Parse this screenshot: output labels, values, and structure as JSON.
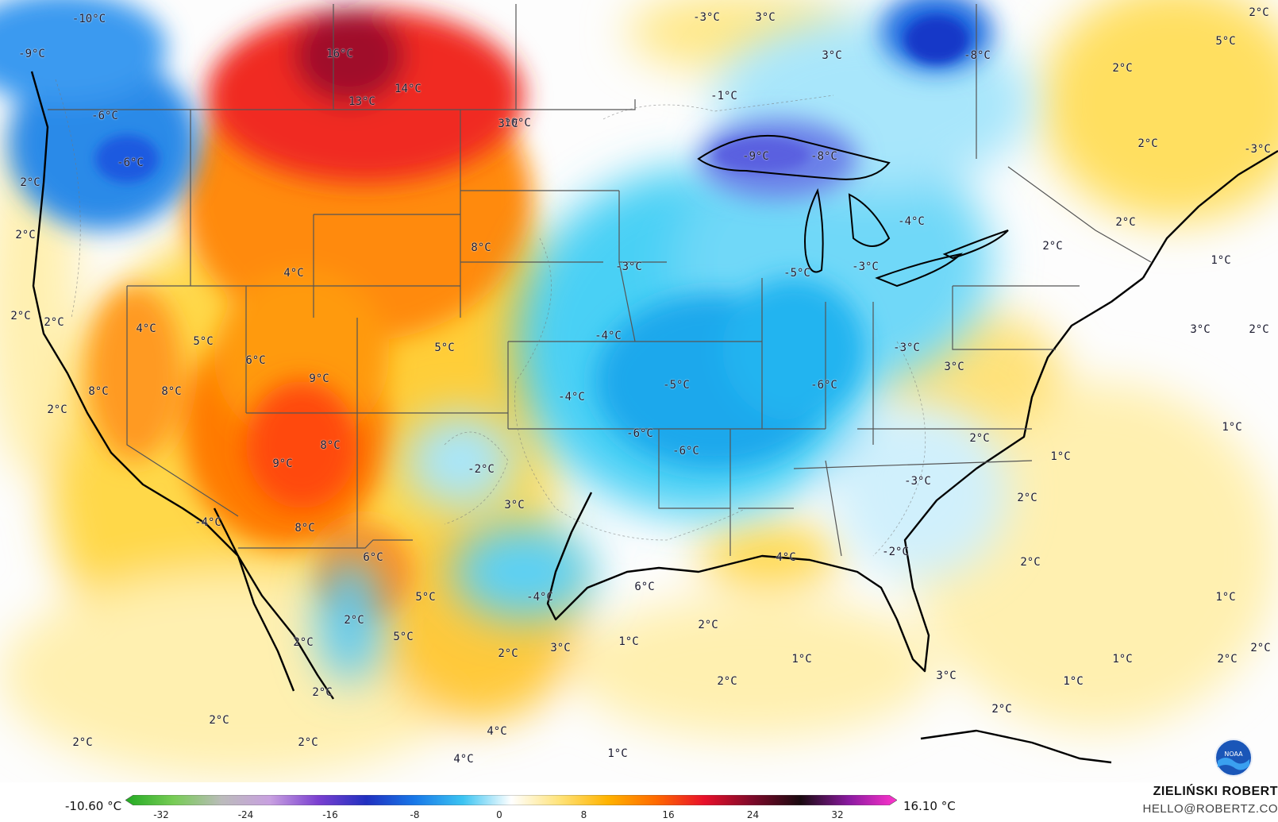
{
  "logo": {
    "text": "NOAA"
  },
  "legend": {
    "min_label": "-10.60 °C",
    "max_label": "16.10 °C",
    "ticks": [
      "-32",
      "-24",
      "-16",
      "-8",
      "0",
      "8",
      "16",
      "24",
      "32"
    ],
    "colors": [
      "#22aa22",
      "#77cc55",
      "#bbbbbb",
      "#c8a0e0",
      "#7a3fd0",
      "#2030c0",
      "#1878e8",
      "#3cc4f2",
      "#ffffff",
      "#ffe37a",
      "#ffb300",
      "#ff6a00",
      "#e8102a",
      "#7d0a2a",
      "#1a0a10",
      "#8a1aa0",
      "#ff33cc"
    ]
  },
  "credit": {
    "name": "ZIELIŃSKI ROBERT",
    "email": "HELLO@ROBERTZ.CO"
  },
  "temperature_labels": [
    {
      "text": "-10°C"
    },
    {
      "text": "-9°C"
    },
    {
      "text": "16°C"
    },
    {
      "text": "14°C"
    },
    {
      "text": "13°C"
    },
    {
      "text": "10°C"
    },
    {
      "text": "-6°C"
    },
    {
      "text": "-6°C"
    },
    {
      "text": "2°C"
    },
    {
      "text": "2°C"
    },
    {
      "text": "2°C"
    },
    {
      "text": "2°C"
    },
    {
      "text": "8°C"
    },
    {
      "text": "4°C"
    },
    {
      "text": "4°C"
    },
    {
      "text": "5°C"
    },
    {
      "text": "6°C"
    },
    {
      "text": "9°C"
    },
    {
      "text": "5°C"
    },
    {
      "text": "8°C"
    },
    {
      "text": "8°C"
    },
    {
      "text": "2°C"
    },
    {
      "text": "9°C"
    },
    {
      "text": "8°C"
    },
    {
      "text": "8°C"
    },
    {
      "text": "-4°C"
    },
    {
      "text": "6°C"
    },
    {
      "text": "-2°C"
    },
    {
      "text": "3°C"
    },
    {
      "text": "-3°C"
    },
    {
      "text": "3°C"
    },
    {
      "text": "3°C"
    },
    {
      "text": "-1°C"
    },
    {
      "text": "3°C"
    },
    {
      "text": "-8°C"
    },
    {
      "text": "5°C"
    },
    {
      "text": "2°C"
    },
    {
      "text": "-9°C"
    },
    {
      "text": "-8°C"
    },
    {
      "text": "-3°C"
    },
    {
      "text": "-4°C"
    },
    {
      "text": "-5°C"
    },
    {
      "text": "-3°C"
    },
    {
      "text": "2°C"
    },
    {
      "text": "2°C"
    },
    {
      "text": "1°C"
    },
    {
      "text": "2°C"
    },
    {
      "text": "-3°C"
    },
    {
      "text": "-4°C"
    },
    {
      "text": "-5°C"
    },
    {
      "text": "-4°C"
    },
    {
      "text": "-6°C"
    },
    {
      "text": "-6°C"
    },
    {
      "text": "-6°C"
    },
    {
      "text": "-3°C"
    },
    {
      "text": "3°C"
    },
    {
      "text": "3°C"
    },
    {
      "text": "2°C"
    },
    {
      "text": "1°C"
    },
    {
      "text": "1°C"
    },
    {
      "text": "2°C"
    },
    {
      "text": "-3°C"
    },
    {
      "text": "-2°C"
    },
    {
      "text": "2°C"
    },
    {
      "text": "4°C"
    },
    {
      "text": "6°C"
    },
    {
      "text": "-4°C"
    },
    {
      "text": "5°C"
    },
    {
      "text": "2°C"
    },
    {
      "text": "5°C"
    },
    {
      "text": "2°C"
    },
    {
      "text": "3°C"
    },
    {
      "text": "1°C"
    },
    {
      "text": "2°C"
    },
    {
      "text": "1°C"
    },
    {
      "text": "2°C"
    },
    {
      "text": "3°C"
    },
    {
      "text": "1°C"
    },
    {
      "text": "2°C"
    },
    {
      "text": "1°C"
    },
    {
      "text": "2°C"
    },
    {
      "text": "2°C"
    },
    {
      "text": "2°C"
    },
    {
      "text": "1°C"
    },
    {
      "text": "4°C"
    },
    {
      "text": "4°C"
    },
    {
      "text": "2°C"
    },
    {
      "text": "2°C"
    },
    {
      "text": "2°C"
    },
    {
      "text": "2°C"
    },
    {
      "text": "2°C"
    },
    {
      "text": "1°C"
    },
    {
      "text": "2°C"
    },
    {
      "text": "1°C"
    },
    {
      "text": "2°C"
    }
  ]
}
